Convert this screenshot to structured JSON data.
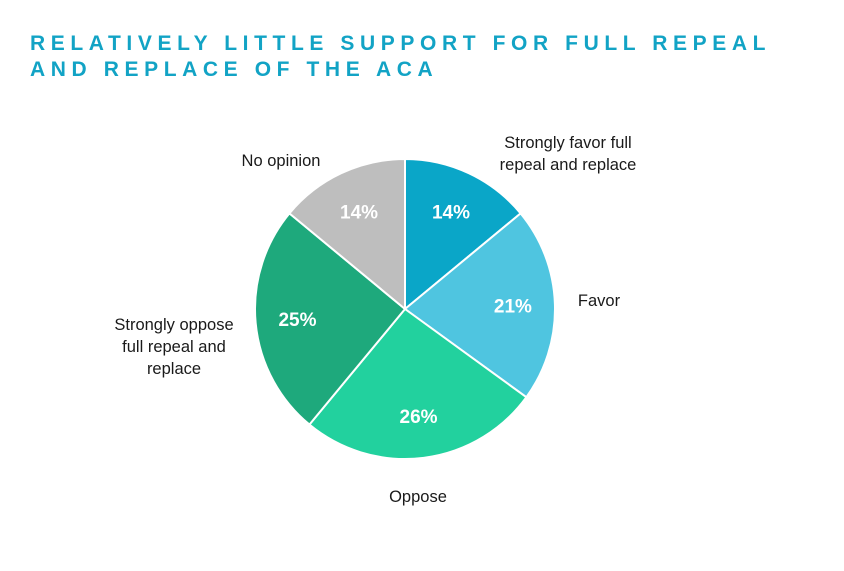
{
  "title_lines": [
    "RELATIVELY LITTLE SUPPORT FOR FULL REPEAL",
    "AND REPLACE OF THE ACA"
  ],
  "colors": {
    "title": "#12a3c5",
    "strongly_favor": "#0aa6c8",
    "favor": "#4fc5e0",
    "oppose": "#22d19e",
    "strongly_oppose": "#1ea97c",
    "no_opinion": "#bebebe"
  },
  "chart_data": {
    "type": "pie",
    "start": "12 o'clock",
    "direction": "clockwise",
    "slices": [
      {
        "label_lines": [
          "Strongly favor full",
          "repeal and replace"
        ],
        "value": 14,
        "value_label": "14%",
        "color_key": "strongly_favor",
        "label_side": "right"
      },
      {
        "label_lines": [
          "Favor"
        ],
        "value": 21,
        "value_label": "21%",
        "color_key": "favor",
        "label_side": "right"
      },
      {
        "label_lines": [
          "Oppose"
        ],
        "value": 26,
        "value_label": "26%",
        "color_key": "oppose",
        "label_side": "bottom"
      },
      {
        "label_lines": [
          "Strongly oppose",
          "full repeal and",
          "replace"
        ],
        "value": 25,
        "value_label": "25%",
        "color_key": "strongly_oppose",
        "label_side": "left"
      },
      {
        "label_lines": [
          "No opinion"
        ],
        "value": 14,
        "value_label": "14%",
        "color_key": "no_opinion",
        "label_side": "top-left"
      }
    ]
  }
}
